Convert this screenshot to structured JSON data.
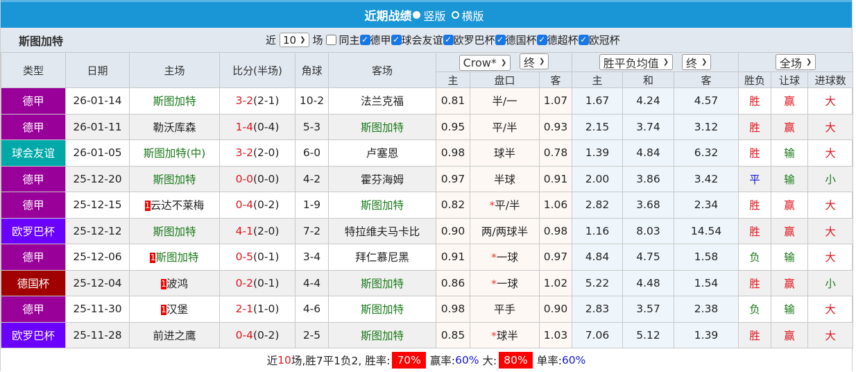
{
  "title": {
    "text": "近期战绩",
    "options": [
      {
        "label": "竖版",
        "selected": true
      },
      {
        "label": "横版",
        "selected": false
      }
    ]
  },
  "filter": {
    "team": "斯图加特",
    "near_label": "近",
    "count": "10",
    "unit": "场",
    "same_home": "同主",
    "leagues": [
      "德甲",
      "球会友谊",
      "欧罗巴杯",
      "德国杯",
      "德超杯",
      "欧冠杯"
    ]
  },
  "headers": {
    "type": "类型",
    "date": "日期",
    "home": "主场",
    "score": "比分(半场)",
    "corner": "角球",
    "away": "客场",
    "asian_company": "Crow*",
    "asian_stage": "终",
    "euro_type": "胜平负均值",
    "euro_stage": "终",
    "period": "全场",
    "sub": [
      "主",
      "盘口",
      "客",
      "主",
      "和",
      "客",
      "胜负",
      "让球",
      "进球数"
    ]
  },
  "colors": {
    "德甲": "#990099",
    "球会友谊": "#00a8a8",
    "欧罗巴杯": "#6a00ff",
    "德国杯": "#a00000",
    "win": "#e0141e",
    "draw": "#1616d6",
    "loss": "#1a7a1a"
  },
  "rows": [
    {
      "league": "德甲",
      "date": "26-01-14",
      "home": "斯图加特",
      "home_rc": "",
      "score": "3-2",
      "half": "(2-1)",
      "corner": "10-2",
      "away": "法兰克福",
      "ah": "0.81",
      "line": "半/一",
      "star": false,
      "aa": "1.07",
      "eh": "1.67",
      "ed": "4.24",
      "ea": "4.57",
      "res": "胜",
      "hcap": "赢",
      "ou": "大",
      "team_side": "home"
    },
    {
      "league": "德甲",
      "date": "26-01-11",
      "home": "勒沃库森",
      "home_rc": "",
      "score": "1-4",
      "half": "(0-4)",
      "corner": "5-3",
      "away": "斯图加特",
      "ah": "0.95",
      "line": "平/半",
      "star": false,
      "aa": "0.93",
      "eh": "2.15",
      "ed": "3.74",
      "ea": "3.12",
      "res": "胜",
      "hcap": "赢",
      "ou": "大",
      "team_side": "away"
    },
    {
      "league": "球会友谊",
      "date": "26-01-05",
      "home": "斯图加特(中)",
      "home_rc": "",
      "score": "3-2",
      "half": "(2-0)",
      "corner": "6-0",
      "away": "卢塞恩",
      "ah": "0.98",
      "line": "球半",
      "star": false,
      "aa": "0.78",
      "eh": "1.39",
      "ed": "4.84",
      "ea": "6.32",
      "res": "胜",
      "hcap": "输",
      "ou": "大",
      "team_side": "home"
    },
    {
      "league": "德甲",
      "date": "25-12-20",
      "home": "斯图加特",
      "home_rc": "",
      "score": "0-0",
      "half": "(0-0)",
      "corner": "4-2",
      "away": "霍芬海姆",
      "ah": "0.97",
      "line": "半球",
      "star": false,
      "aa": "0.91",
      "eh": "2.00",
      "ed": "3.86",
      "ea": "3.42",
      "res": "平",
      "hcap": "输",
      "ou": "小",
      "team_side": "home"
    },
    {
      "league": "德甲",
      "date": "25-12-15",
      "home": "云达不莱梅",
      "home_rc": "1",
      "score": "0-4",
      "half": "(0-2)",
      "corner": "1-9",
      "away": "斯图加特",
      "ah": "0.82",
      "line": "平/半",
      "star": true,
      "aa": "1.06",
      "eh": "2.82",
      "ed": "3.68",
      "ea": "2.34",
      "res": "胜",
      "hcap": "赢",
      "ou": "大",
      "team_side": "away"
    },
    {
      "league": "欧罗巴杯",
      "date": "25-12-12",
      "home": "斯图加特",
      "home_rc": "",
      "score": "4-1",
      "half": "(2-0)",
      "corner": "7-2",
      "away": "特拉维夫马卡比",
      "ah": "0.90",
      "line": "两/两球半",
      "star": false,
      "aa": "0.98",
      "eh": "1.16",
      "ed": "8.03",
      "ea": "14.54",
      "res": "胜",
      "hcap": "赢",
      "ou": "大",
      "team_side": "home"
    },
    {
      "league": "德甲",
      "date": "25-12-06",
      "home": "斯图加特",
      "home_rc": "1",
      "score": "0-5",
      "half": "(0-1)",
      "corner": "3-4",
      "away": "拜仁慕尼黑",
      "ah": "0.91",
      "line": "一球",
      "star": true,
      "aa": "0.97",
      "eh": "4.84",
      "ed": "4.75",
      "ea": "1.58",
      "res": "负",
      "hcap": "输",
      "ou": "大",
      "team_side": "home"
    },
    {
      "league": "德国杯",
      "date": "25-12-04",
      "home": "波鸿",
      "home_rc": "1",
      "score": "0-2",
      "half": "(0-1)",
      "corner": "4-4",
      "away": "斯图加特",
      "ah": "0.86",
      "line": "一球",
      "star": true,
      "aa": "1.02",
      "eh": "5.22",
      "ed": "4.48",
      "ea": "1.54",
      "res": "胜",
      "hcap": "赢",
      "ou": "小",
      "team_side": "away"
    },
    {
      "league": "德甲",
      "date": "25-11-30",
      "home": "汉堡",
      "home_rc": "1",
      "score": "2-1",
      "half": "(1-0)",
      "corner": "4-6",
      "away": "斯图加特",
      "ah": "0.98",
      "line": "平手",
      "star": false,
      "aa": "0.90",
      "eh": "2.83",
      "ed": "3.57",
      "ea": "2.38",
      "res": "负",
      "hcap": "输",
      "ou": "大",
      "team_side": "away"
    },
    {
      "league": "欧罗巴杯",
      "date": "25-11-28",
      "home": "前进之鹰",
      "home_rc": "",
      "score": "0-4",
      "half": "(0-2)",
      "corner": "2-5",
      "away": "斯图加特",
      "ah": "0.85",
      "line": "球半",
      "star": true,
      "aa": "1.03",
      "eh": "7.06",
      "ed": "5.12",
      "ea": "1.39",
      "res": "胜",
      "hcap": "赢",
      "ou": "大",
      "team_side": "away"
    }
  ],
  "summary": {
    "p1": "近",
    "n": "10",
    "p2": "场,胜7平1负2, 胜率:",
    "win_rate": "70%",
    "p3": "赢率:",
    "hcap_rate": "60%",
    "p4": "大:",
    "over_rate": "80%",
    "p5": "单率:",
    "odd_rate": "60%"
  }
}
